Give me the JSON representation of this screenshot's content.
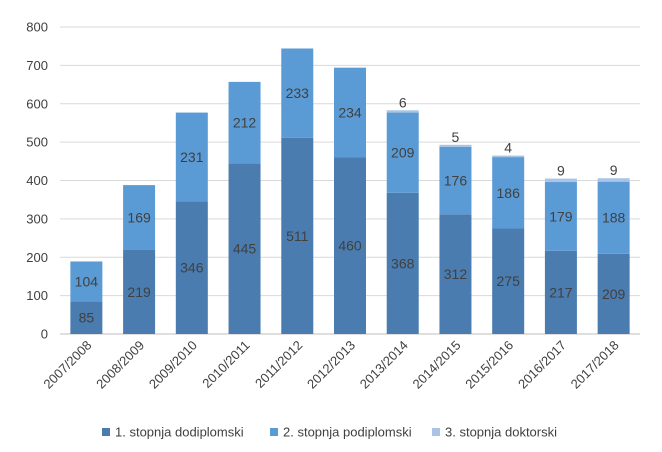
{
  "chart_data": {
    "type": "bar",
    "stacked": true,
    "title": "",
    "xlabel": "",
    "ylabel": "",
    "ylim": [
      0,
      800
    ],
    "yticks": [
      0,
      100,
      200,
      300,
      400,
      500,
      600,
      700,
      800
    ],
    "grid": "horizontal",
    "legend_position": "bottom",
    "categories": [
      "2007/2008",
      "2008/2009",
      "2009/2010",
      "2010/2011",
      "2011/2012",
      "2012/2013",
      "2013/2014",
      "2014/2015",
      "2015/2016",
      "2016/2017",
      "2017/2018"
    ],
    "series": [
      {
        "name": "1. stopnja dodiplomski",
        "color": "#4a7cb0",
        "values": [
          85,
          219,
          346,
          445,
          511,
          460,
          368,
          312,
          275,
          217,
          209
        ],
        "labels": [
          "85",
          "219",
          "346",
          "445",
          "511",
          "460",
          "368",
          "312",
          "275",
          "217",
          "209"
        ]
      },
      {
        "name": "2. stopnja podiplomski",
        "color": "#5b9bd5",
        "values": [
          104,
          169,
          231,
          212,
          233,
          234,
          209,
          176,
          186,
          179,
          188
        ],
        "labels": [
          "104",
          "169",
          "231",
          "212",
          "233",
          "234",
          "209",
          "176",
          "186",
          "179",
          "188"
        ]
      },
      {
        "name": "3. stopnja doktorski",
        "color": "#a9c4e4",
        "values": [
          0,
          0,
          0,
          0,
          0,
          0,
          6,
          5,
          4,
          9,
          9
        ],
        "labels": [
          "",
          "",
          "",
          "",
          "",
          "",
          "6",
          "5",
          "4",
          "9",
          "9"
        ]
      }
    ]
  }
}
